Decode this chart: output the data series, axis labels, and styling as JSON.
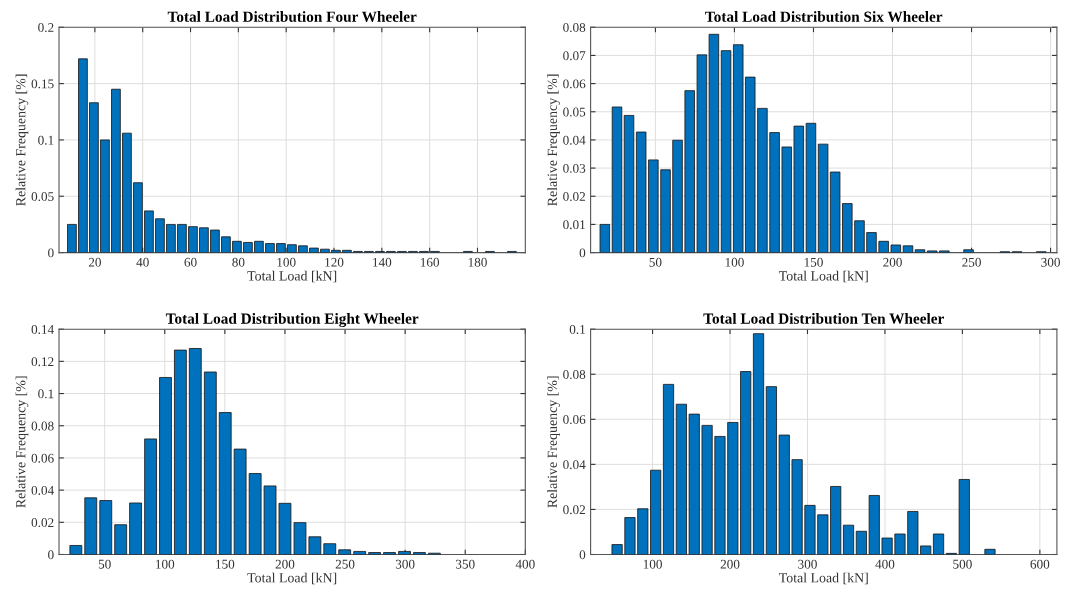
{
  "chart_data": [
    {
      "type": "bar",
      "title": "Total Load Distribution Four Wheeler",
      "xlabel": "Total Load [kN]",
      "ylabel": "Relative Frequency [%]",
      "color": "#0072bd",
      "grid": true,
      "x": [
        10.4,
        15,
        19.6,
        24.2,
        28.8,
        33.4,
        38,
        42.6,
        47.2,
        51.8,
        56.4,
        61,
        65.6,
        70.2,
        74.8,
        79.4,
        84,
        88.6,
        93.2,
        97.8,
        102.4,
        107,
        111.6,
        116.2,
        120.8,
        125.4,
        130,
        134.6,
        139.2,
        143.8,
        148.4,
        153,
        157.6,
        162.2,
        166.8,
        171.4,
        176,
        180.6,
        185.2,
        189.8,
        194.4
      ],
      "values": [
        0.025,
        0.172,
        0.133,
        0.1,
        0.145,
        0.106,
        0.062,
        0.037,
        0.03,
        0.025,
        0.025,
        0.023,
        0.022,
        0.02,
        0.014,
        0.01,
        0.009,
        0.01,
        0.008,
        0.008,
        0.007,
        0.006,
        0.004,
        0.003,
        0.002,
        0.002,
        0.001,
        0.001,
        0.001,
        0.001,
        0.001,
        0.001,
        0.001,
        0.001,
        null,
        null,
        0.001,
        null,
        0.001,
        null,
        0.001
      ],
      "xlim": [
        5,
        200
      ],
      "xticks": [
        20,
        40,
        60,
        80,
        100,
        120,
        140,
        160,
        180
      ],
      "ylim": [
        0,
        0.2
      ],
      "yticks": [
        0,
        0.05,
        0.1,
        0.15,
        0.2
      ]
    },
    {
      "type": "bar",
      "title": "Total Load Distribution Six Wheeler",
      "xlabel": "Total Load [kN]",
      "ylabel": "Relative Frequency [%]",
      "color": "#0072bd",
      "grid": true,
      "x": [
        18,
        25.7,
        33.3,
        41,
        48.7,
        56.4,
        64,
        71.7,
        79.4,
        87,
        94.7,
        102.4,
        110,
        117.7,
        125.4,
        133.1,
        140.7,
        148.4,
        156.1,
        163.7,
        171.4,
        179.1,
        186.7,
        194.4,
        202.1,
        209.8,
        217.4,
        225.1,
        232.8,
        240.4,
        248.1,
        255.8,
        263.4,
        271.1,
        278.8,
        286.5,
        294.1
      ],
      "values": [
        0.01,
        0.0517,
        0.0487,
        0.0428,
        0.0329,
        0.0294,
        0.0399,
        0.0575,
        0.0702,
        0.0775,
        0.0717,
        0.0738,
        0.0623,
        0.0512,
        0.0426,
        0.0375,
        0.0449,
        0.0459,
        0.0385,
        0.0286,
        0.0174,
        0.0113,
        0.0071,
        0.004,
        0.0027,
        0.0024,
        0.001,
        0.0006,
        0.0006,
        null,
        0.001,
        null,
        null,
        0.0003,
        0.0003,
        null,
        0.0003
      ],
      "xlim": [
        9,
        304
      ],
      "xticks": [
        50,
        100,
        150,
        200,
        250,
        300
      ],
      "ylim": [
        0,
        0.08
      ],
      "yticks": [
        0,
        0.01,
        0.02,
        0.03,
        0.04,
        0.05,
        0.06,
        0.07,
        0.08
      ]
    },
    {
      "type": "bar",
      "title": "Total Load Distribution Eight Wheeler",
      "xlabel": "Total Load [kN]",
      "ylabel": "Relative Frequency [%]",
      "color": "#0072bd",
      "grid": true,
      "x": [
        26,
        38.4,
        50.9,
        63.3,
        75.7,
        88.2,
        100.6,
        113,
        125.4,
        137.9,
        150.3,
        162.7,
        175.2,
        187.6,
        200,
        212.5,
        224.9,
        237.3,
        249.7,
        262.2,
        274.6,
        287,
        299.5,
        311.9,
        324.3
      ],
      "values": [
        0.0056,
        0.0352,
        0.0335,
        0.0185,
        0.032,
        0.0718,
        0.11,
        0.127,
        0.128,
        0.1134,
        0.0882,
        0.0655,
        0.0503,
        0.0426,
        0.0318,
        0.0198,
        0.011,
        0.0067,
        0.0029,
        0.0019,
        0.0012,
        0.0012,
        0.0019,
        0.0012,
        0.0008
      ],
      "xlim": [
        12,
        400
      ],
      "xticks": [
        50,
        100,
        150,
        200,
        250,
        300,
        350,
        400
      ],
      "ylim": [
        0,
        0.14
      ],
      "yticks": [
        0,
        0.02,
        0.04,
        0.06,
        0.08,
        0.1,
        0.12,
        0.14
      ]
    },
    {
      "type": "bar",
      "title": "Total Load Distribution Ten Wheeler",
      "xlabel": "Total Load [kN]",
      "ylabel": "Relative Frequency [%]",
      "color": "#0072bd",
      "grid": true,
      "x": [
        54.2,
        70.8,
        87.4,
        104,
        120.6,
        137.2,
        153.8,
        170.4,
        187,
        203.6,
        220.2,
        236.8,
        253.4,
        270,
        286.6,
        303.2,
        319.8,
        336.4,
        353,
        369.6,
        386.2,
        402.8,
        419.4,
        436,
        452.6,
        469.2,
        485.8,
        502.4,
        519,
        535.6
      ],
      "values": [
        0.0044,
        0.0164,
        0.0203,
        0.0374,
        0.0755,
        0.0667,
        0.0623,
        0.0573,
        0.0524,
        0.0586,
        0.0812,
        0.098,
        0.0745,
        0.053,
        0.0421,
        0.0218,
        0.0176,
        0.0302,
        0.013,
        0.0103,
        0.0262,
        0.0073,
        0.0091,
        0.0191,
        0.0038,
        0.0091,
        0.0005,
        0.0333,
        null,
        0.0023
      ],
      "xlim": [
        20,
        622
      ],
      "xticks": [
        100,
        200,
        300,
        400,
        500,
        600
      ],
      "ylim": [
        0,
        0.1
      ],
      "yticks": [
        0,
        0.02,
        0.04,
        0.06,
        0.08,
        0.1
      ]
    }
  ]
}
